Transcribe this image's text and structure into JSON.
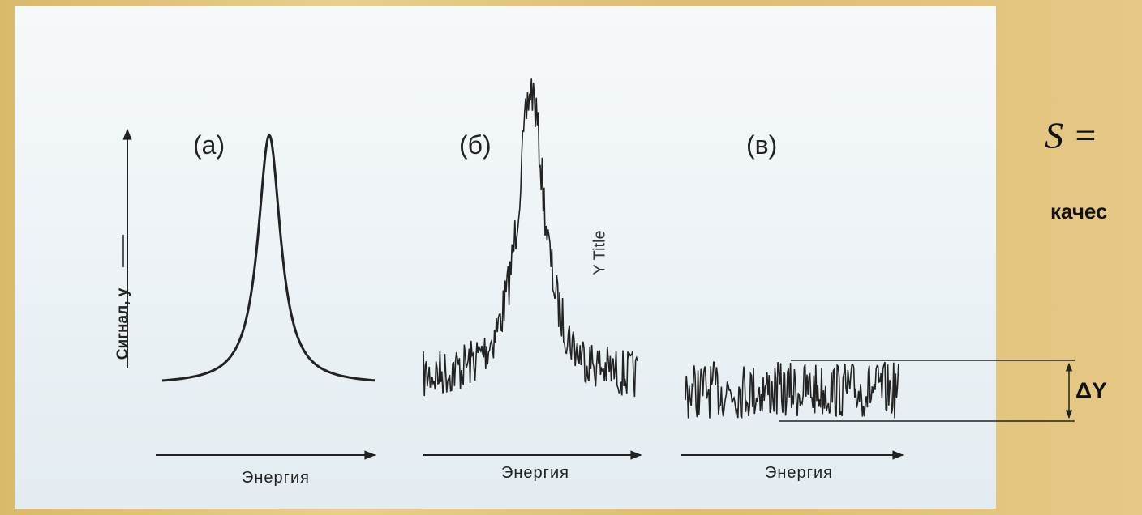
{
  "panels": [
    {
      "label": "(а)",
      "x_axis_label": "Энергия"
    },
    {
      "label": "(б)",
      "x_axis_label": "Энергия"
    },
    {
      "label": "(в)",
      "x_axis_label": "Энергия"
    }
  ],
  "y_axis_label": "Сигнал, у",
  "stray_label": "Y Title",
  "delta_label": "ΔY",
  "formula": "S =",
  "cut_text": "качес"
}
